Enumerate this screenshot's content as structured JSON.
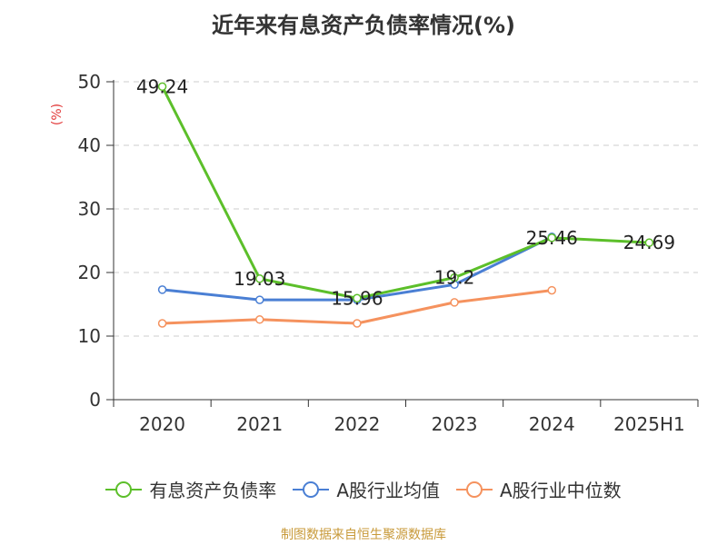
{
  "chart_data": {
    "type": "line",
    "title": "近年来有息资产负债率情况(%)",
    "ylabel": "(%)",
    "xlabel": "",
    "categories": [
      "2020",
      "2021",
      "2022",
      "2023",
      "2024",
      "2025H1"
    ],
    "ylim": [
      0,
      50
    ],
    "yticks": [
      0,
      10,
      20,
      30,
      40,
      50
    ],
    "grid": true,
    "legend_position": "bottom",
    "series": [
      {
        "name": "有息资产负债率",
        "color": "#5cbf2a",
        "values": [
          49.24,
          19.03,
          15.96,
          19.2,
          25.46,
          24.69
        ],
        "labels": [
          "49.24",
          "19.03",
          "15.96",
          "19.2",
          "25.46",
          "24.69"
        ]
      },
      {
        "name": "A股行业均值",
        "color": "#4a7fd4",
        "values": [
          17.3,
          15.7,
          15.7,
          18.1,
          25.6,
          null
        ]
      },
      {
        "name": "A股行业中位数",
        "color": "#f5925e",
        "values": [
          12.0,
          12.6,
          12.0,
          15.3,
          17.2,
          null
        ]
      }
    ],
    "source": "制图数据来自恒生聚源数据库"
  }
}
